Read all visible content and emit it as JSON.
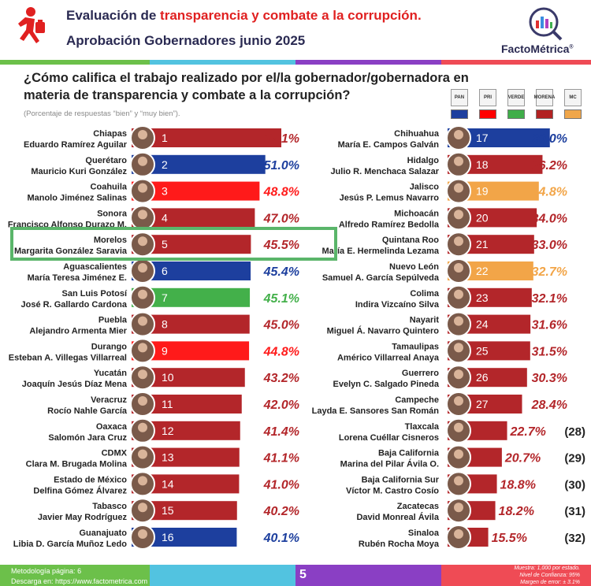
{
  "header": {
    "title_prefix": "Evaluación de ",
    "title_highlight": "transparencia y combate a la corrupción.",
    "subtitle": "Aprobación Gobernadores junio 2025",
    "logo_text": "FactoMétrica",
    "logo_reg": "®"
  },
  "question": "¿Cómo califica el trabajo realizado por el/la gobernador/gobernadora en materia de transparencia y combate a la corrupción?",
  "subnote": "(Porcentaje de respuestas “bien” y “muy bien”).",
  "parties": [
    {
      "name": "PAN",
      "color": "#1d3f9e"
    },
    {
      "name": "PRI",
      "color": "#ff0000"
    },
    {
      "name": "VERDE",
      "color": "#3fae49"
    },
    {
      "name": "MORENA",
      "color": "#b22222"
    },
    {
      "name": "MC",
      "color": "#f0a64a"
    }
  ],
  "colors": {
    "PAN": "#1d3f9e",
    "PRI": "#ff1a1a",
    "VERDE": "#43b04a",
    "MORENA": "#b3262a",
    "MC": "#f2a548"
  },
  "chart_data": {
    "type": "bar",
    "title": "Aprobación Gobernadores junio 2025",
    "unit": "%",
    "highlight_rank": 5,
    "series": [
      {
        "rank": 1,
        "state": "Chiapas",
        "governor": "Eduardo Ramírez Aguilar",
        "value": 57.1,
        "party": "MORENA",
        "label": "57.1%"
      },
      {
        "rank": 2,
        "state": "Querétaro",
        "governor": "Mauricio Kuri González",
        "value": 51.0,
        "party": "PAN",
        "label": "51.0%"
      },
      {
        "rank": 3,
        "state": "Coahuila",
        "governor": "Manolo Jiménez Salinas",
        "value": 48.8,
        "party": "PRI",
        "label": "48.8%"
      },
      {
        "rank": 4,
        "state": "Sonora",
        "governor": "Francisco Alfonso Durazo M.",
        "value": 47.0,
        "party": "MORENA",
        "label": "47.0%"
      },
      {
        "rank": 5,
        "state": "Morelos",
        "governor": "Margarita González Saravia",
        "value": 45.5,
        "party": "MORENA",
        "label": "45.5%"
      },
      {
        "rank": 6,
        "state": "Aguascalientes",
        "governor": "María Teresa Jiménez E.",
        "value": 45.4,
        "party": "PAN",
        "label": "45.4%"
      },
      {
        "rank": 7,
        "state": "San Luis Potosí",
        "governor": "José R. Gallardo Cardona",
        "value": 45.1,
        "party": "VERDE",
        "label": "45.1%"
      },
      {
        "rank": 8,
        "state": "Puebla",
        "governor": "Alejandro Armenta Mier",
        "value": 45.0,
        "party": "MORENA",
        "label": "45.0%"
      },
      {
        "rank": 9,
        "state": "Durango",
        "governor": "Esteban A. Villegas Villarreal",
        "value": 44.8,
        "party": "PRI",
        "label": "44.8%"
      },
      {
        "rank": 10,
        "state": "Yucatán",
        "governor": "Joaquín Jesús Díaz Mena",
        "value": 43.2,
        "party": "MORENA",
        "label": "43.2%"
      },
      {
        "rank": 11,
        "state": "Veracruz",
        "governor": "Rocío Nahle García",
        "value": 42.0,
        "party": "MORENA",
        "label": "42.0%"
      },
      {
        "rank": 12,
        "state": "Oaxaca",
        "governor": "Salomón Jara Cruz",
        "value": 41.4,
        "party": "MORENA",
        "label": "41.4%"
      },
      {
        "rank": 13,
        "state": "CDMX",
        "governor": "Clara M. Brugada Molina",
        "value": 41.1,
        "party": "MORENA",
        "label": "41.1%"
      },
      {
        "rank": 14,
        "state": "Estado de México",
        "governor": "Delfina Gómez Álvarez",
        "value": 41.0,
        "party": "MORENA",
        "label": "41.0%"
      },
      {
        "rank": 15,
        "state": "Tabasco",
        "governor": "Javier May Rodríguez",
        "value": 40.2,
        "party": "MORENA",
        "label": "40.2%"
      },
      {
        "rank": 16,
        "state": "Guanajuato",
        "governor": "Libia D. García Muñoz Ledo",
        "value": 40.1,
        "party": "PAN",
        "label": "40.1%"
      },
      {
        "rank": 17,
        "state": "Chihuahua",
        "governor": "María E. Campos Galván",
        "value": 39.0,
        "party": "PAN",
        "label": "39.0%"
      },
      {
        "rank": 18,
        "state": "Hidalgo",
        "governor": "Julio R. Menchaca Salazar",
        "value": 36.2,
        "party": "MORENA",
        "label": "36.2%"
      },
      {
        "rank": 19,
        "state": "Jalisco",
        "governor": "Jesús P. Lemus Navarro",
        "value": 34.8,
        "party": "MC",
        "label": "34.8%"
      },
      {
        "rank": 20,
        "state": "Michoacán",
        "governor": "Alfredo Ramírez Bedolla",
        "value": 34.0,
        "party": "MORENA",
        "label": "34.0%"
      },
      {
        "rank": 21,
        "state": "Quintana Roo",
        "governor": "María E. Hermelinda Lezama",
        "value": 33.0,
        "party": "MORENA",
        "label": "33.0%"
      },
      {
        "rank": 22,
        "state": "Nuevo León",
        "governor": "Samuel A. García Sepúlveda",
        "value": 32.7,
        "party": "MC",
        "label": "32.7%"
      },
      {
        "rank": 23,
        "state": "Colima",
        "governor": "Indira Vizcaíno Silva",
        "value": 32.1,
        "party": "MORENA",
        "label": "32.1%"
      },
      {
        "rank": 24,
        "state": "Nayarit",
        "governor": "Miguel Á. Navarro Quintero",
        "value": 31.6,
        "party": "MORENA",
        "label": "31.6%"
      },
      {
        "rank": 25,
        "state": "Tamaulipas",
        "governor": "Américo Villarreal Anaya",
        "value": 31.5,
        "party": "MORENA",
        "label": "31.5%"
      },
      {
        "rank": 26,
        "state": "Guerrero",
        "governor": "Evelyn C. Salgado Pineda",
        "value": 30.3,
        "party": "MORENA",
        "label": "30.3%"
      },
      {
        "rank": 27,
        "state": "Campeche",
        "governor": "Layda E. Sansores San Román",
        "value": 28.4,
        "party": "MORENA",
        "label": "28.4%"
      },
      {
        "rank": 28,
        "state": "Tlaxcala",
        "governor": "Lorena Cuéllar Cisneros",
        "value": 22.7,
        "party": "MORENA",
        "label": "22.7%",
        "rank_label": "(28)"
      },
      {
        "rank": 29,
        "state": "Baja California",
        "governor": "Marina del Pilar Ávila O.",
        "value": 20.7,
        "party": "MORENA",
        "label": "20.7%",
        "rank_label": "(29)"
      },
      {
        "rank": 30,
        "state": "Baja California Sur",
        "governor": "Víctor M. Castro Cosío",
        "value": 18.8,
        "party": "MORENA",
        "label": "18.8%",
        "rank_label": "(30)"
      },
      {
        "rank": 31,
        "state": "Zacatecas",
        "governor": "David Monreal Ávila",
        "value": 18.2,
        "party": "MORENA",
        "label": "18.2%",
        "rank_label": "(31)"
      },
      {
        "rank": 32,
        "state": "Sinaloa",
        "governor": "Rubén Rocha Moya",
        "value": 15.5,
        "party": "MORENA",
        "label": "15.5%",
        "rank_label": "(32)"
      }
    ]
  },
  "footer": {
    "methodology": "Metodología página: 6",
    "download": "Descarga en: https://www.factometrica.com",
    "page": "5",
    "sample": "Muestra:  1,000 por estado.",
    "confidence": "Nivel de Confianza: 95%",
    "margin": "Margen de error: ± 3.1%"
  }
}
